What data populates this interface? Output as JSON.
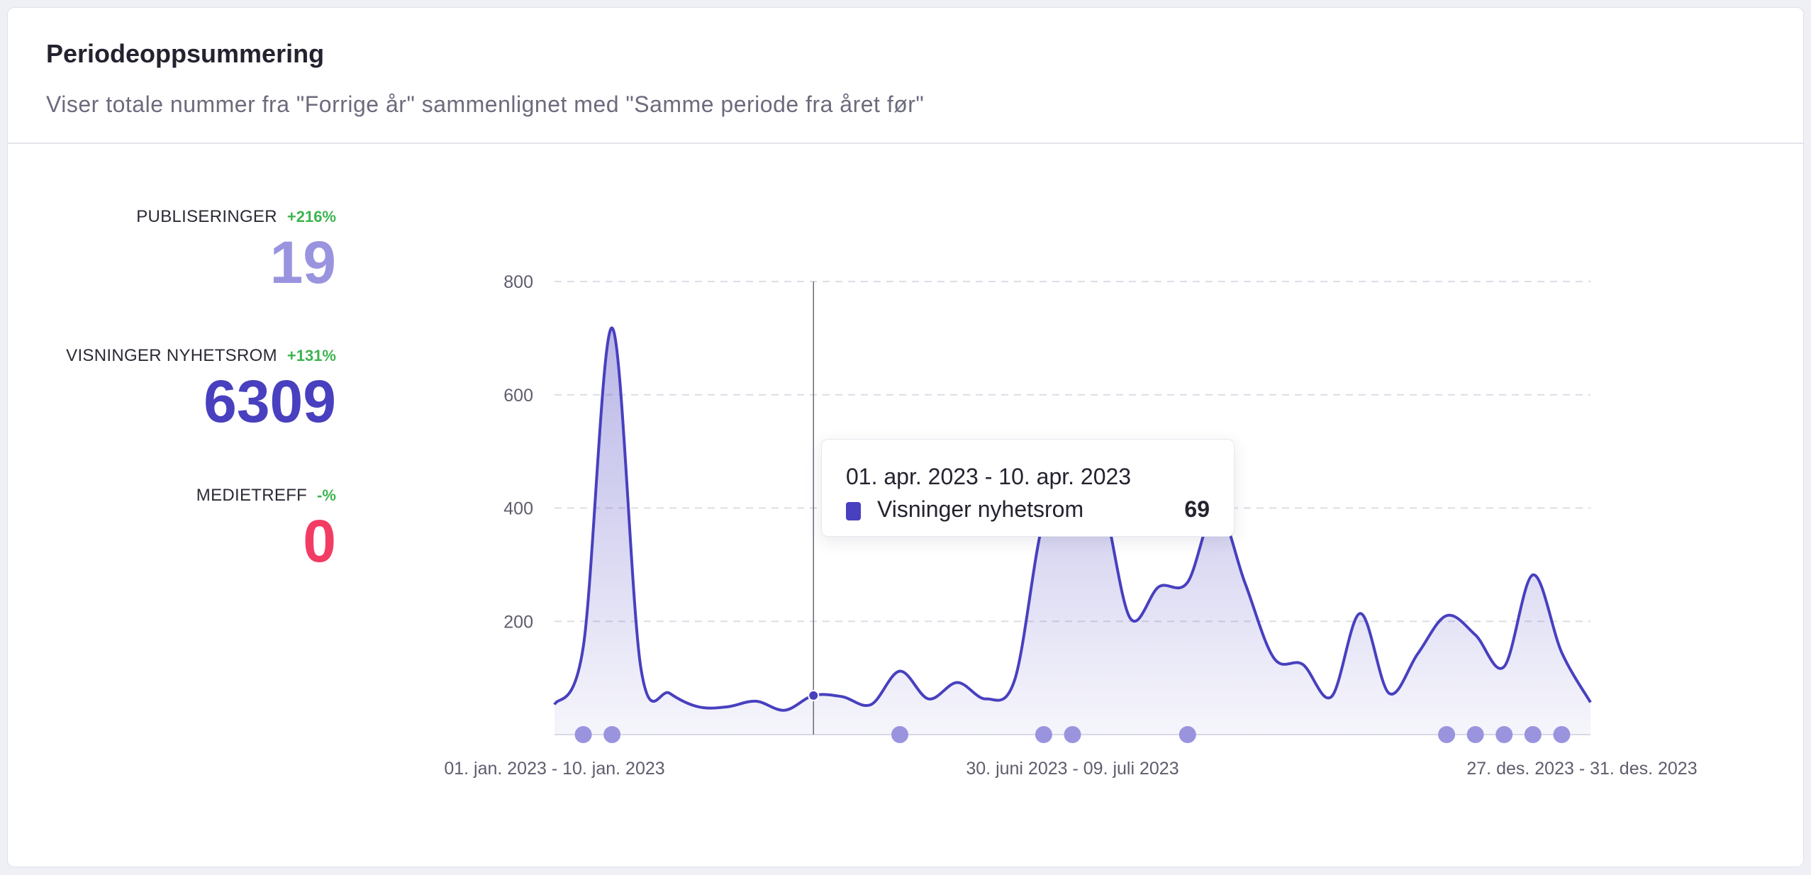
{
  "header": {
    "title": "Periodeoppsummering",
    "subtitle": "Viser totale nummer fra \"Forrige år\" sammenlignet med \"Samme periode fra året før\""
  },
  "stats": [
    {
      "label": "PUBLISERINGER",
      "change": "+216%",
      "value": "19",
      "color": "#9a94df"
    },
    {
      "label": "VISNINGER NYHETSROM",
      "change": "+131%",
      "value": "6309",
      "color": "#4840bf"
    },
    {
      "label": "MEDIETREFF",
      "change": "-%",
      "value": "0",
      "color": "#f23c64"
    }
  ],
  "tooltip": {
    "date": "01. apr. 2023 - 10. apr. 2023",
    "series": "Visninger nyhetsrom",
    "value": "69"
  },
  "chart_data": {
    "type": "area",
    "title": "",
    "xlabel": "",
    "ylabel": "",
    "ylim": [
      0,
      800
    ],
    "yticks": [
      "200",
      "400",
      "600",
      "800"
    ],
    "ytick_values": [
      200,
      400,
      600,
      800
    ],
    "x_tick_labels": [
      {
        "index": 0,
        "label": "01. jan. 2023 - 10. jan. 2023"
      },
      {
        "index": 18,
        "label": "30. juni 2023 - 09. juli 2023"
      },
      {
        "index": 36,
        "label": "27. des. 2023 - 31. des. 2023"
      }
    ],
    "grid": true,
    "series": [
      {
        "name": "Visninger nyhetsrom",
        "color": "#4840bf",
        "values": [
          53,
          155,
          718,
          118,
          73,
          49,
          49,
          59,
          43,
          69,
          67,
          53,
          112,
          63,
          92,
          63,
          98,
          380,
          440,
          420,
          206,
          261,
          269,
          400,
          267,
          135,
          124,
          67,
          214,
          73,
          143,
          210,
          176,
          120,
          282,
          145,
          57
        ]
      }
    ],
    "publication_markers": {
      "name": "Publiseringer",
      "color": "#9a94df",
      "indices": [
        1,
        2,
        12,
        17,
        18,
        22,
        31,
        32,
        33,
        34,
        35
      ]
    },
    "hover_index": 9
  }
}
